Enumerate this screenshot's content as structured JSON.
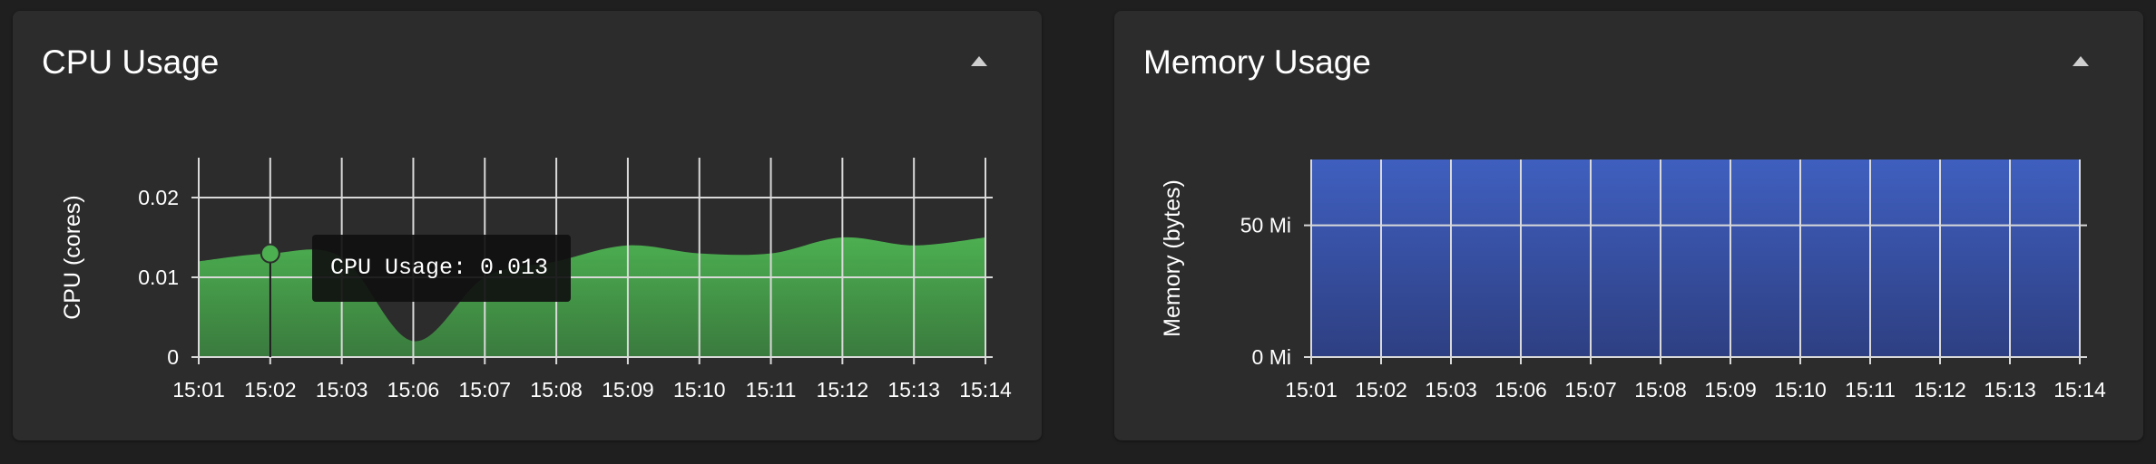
{
  "panels": [
    {
      "title": "CPU Usage",
      "collapse_icon": "chevron-up-icon"
    },
    {
      "title": "Memory Usage",
      "collapse_icon": "chevron-up-icon"
    }
  ],
  "tooltip": {
    "text": "CPU Usage: 0.013"
  },
  "colors": {
    "cpu_fill_top": "#4caf50",
    "cpu_fill_bottom": "#3a7a3e",
    "mem_fill_top": "#3f5fbf",
    "mem_fill_bottom": "#2e3f82",
    "panel_bg": "#2c2c2c",
    "page_bg": "#1f1f1f"
  },
  "chart_data": [
    {
      "type": "area",
      "title": "CPU Usage",
      "xlabel": "",
      "ylabel": "CPU (cores)",
      "x": [
        "15:01",
        "15:02",
        "15:03",
        "15:06",
        "15:07",
        "15:08",
        "15:09",
        "15:10",
        "15:11",
        "15:12",
        "15:13",
        "15:14"
      ],
      "values": [
        0.012,
        0.013,
        0.0125,
        0.002,
        0.01,
        0.012,
        0.014,
        0.013,
        0.013,
        0.015,
        0.014,
        0.015
      ],
      "y_ticks": [
        {
          "value": 0,
          "label": "0"
        },
        {
          "value": 0.01,
          "label": "0.01"
        },
        {
          "value": 0.02,
          "label": "0.02"
        }
      ],
      "ylim": [
        0,
        0.025
      ],
      "grid": true,
      "highlight_index": 1
    },
    {
      "type": "area",
      "title": "Memory Usage",
      "xlabel": "",
      "ylabel": "Memory (bytes)",
      "x": [
        "15:01",
        "15:02",
        "15:03",
        "15:06",
        "15:07",
        "15:08",
        "15:09",
        "15:10",
        "15:11",
        "15:12",
        "15:13",
        "15:14"
      ],
      "values": [
        75,
        75,
        75,
        75,
        75,
        75,
        75,
        75,
        75,
        75,
        75,
        75
      ],
      "y_ticks": [
        {
          "value": 0,
          "label": "0 Mi"
        },
        {
          "value": 50,
          "label": "50 Mi"
        }
      ],
      "ylim": [
        0,
        75
      ],
      "grid": true
    }
  ]
}
